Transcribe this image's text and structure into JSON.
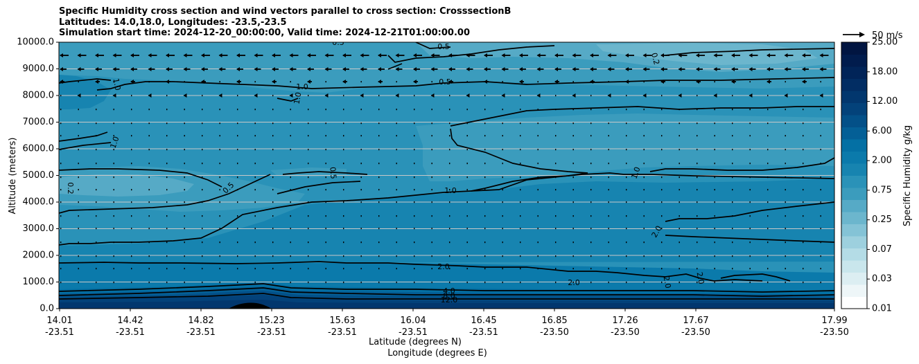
{
  "chart_data": {
    "type": "contour",
    "title_lines": [
      "Specific Humidity cross section and wind vectors parallel to cross section: CrosssectionB",
      "Latitudes: 14.0,18.0, Longitudes: -23.5,-23.5",
      "Simulation start time: 2024-12-20_00:00:00, Valid time: 2024-12-21T01:00:00.00"
    ],
    "ylabel": "Altitude (meters)",
    "xlabel_lines": [
      "Latitude (degrees N)",
      "Longitude (degrees E)"
    ],
    "ylim": [
      0,
      10000
    ],
    "xlim": [
      14.01,
      17.99
    ],
    "y_ticks": [
      "0.0",
      "1000.0",
      "2000.0",
      "3000.0",
      "4000.0",
      "5000.0",
      "6000.0",
      "7000.0",
      "8000.0",
      "9000.0",
      "10000.0"
    ],
    "x_ticks": [
      {
        "lat": "14.01",
        "lon": "-23.51"
      },
      {
        "lat": "14.42",
        "lon": "-23.51"
      },
      {
        "lat": "14.82",
        "lon": "-23.51"
      },
      {
        "lat": "15.23",
        "lon": "-23.51"
      },
      {
        "lat": "15.63",
        "lon": "-23.51"
      },
      {
        "lat": "16.04",
        "lon": "-23.51"
      },
      {
        "lat": "16.45",
        "lon": "-23.51"
      },
      {
        "lat": "16.85",
        "lon": "-23.50"
      },
      {
        "lat": "17.26",
        "lon": "-23.50"
      },
      {
        "lat": "17.67",
        "lon": "-23.50"
      },
      {
        "lat": "17.99",
        "lon": "-23.50"
      }
    ],
    "grid": "horizontal",
    "colorbar": {
      "label": "Specific Humidity g/kg",
      "levels": [
        0.01,
        0.02,
        0.03,
        0.05,
        0.07,
        0.1,
        0.25,
        0.4,
        0.5,
        0.75,
        1.0,
        1.5,
        2.0,
        3.0,
        4.0,
        6.0,
        8.0,
        10.0,
        12.0,
        15.0,
        18.0,
        21.0,
        25.0
      ],
      "tick_labels": [
        "0.01",
        "0.03",
        "0.07",
        "0.25",
        "0.75",
        "2.00",
        "6.00",
        "12.00",
        "18.00",
        "25.00"
      ],
      "colors": [
        "#ffffff",
        "#eef6f8",
        "#dceef2",
        "#c9e6ec",
        "#b4dce6",
        "#9dd0de",
        "#84c3d6",
        "#6cb6cd",
        "#56aac6",
        "#3b9cbd",
        "#2a92b8",
        "#1784b0",
        "#0b7aab",
        "#0470a4",
        "#045f96",
        "#035088",
        "#03427a",
        "#02376e",
        "#022d63",
        "#012458",
        "#011c4d",
        "#011541"
      ]
    },
    "contour_labels": [
      "0.2",
      "0.5",
      "1.0",
      "2.0",
      "4.0",
      "8.0",
      "12.0"
    ],
    "quiver_key": "50 m/s",
    "wind_direction": "southward in upper levels (above ~7000 m), near calm below"
  }
}
